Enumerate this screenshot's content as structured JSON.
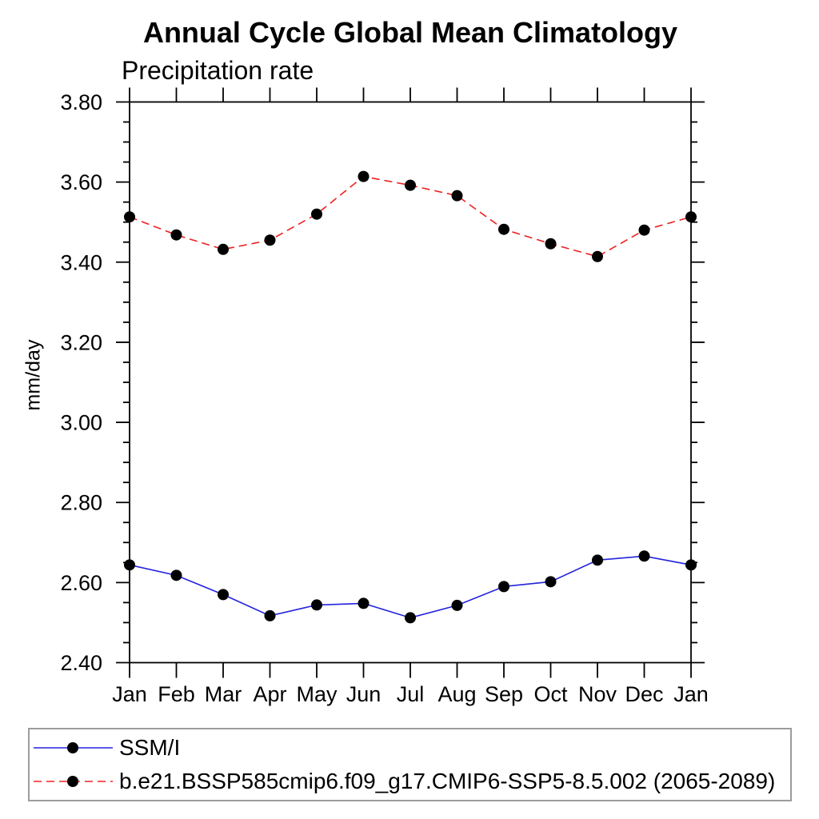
{
  "chart_data": {
    "type": "line",
    "title": "Annual Cycle Global Mean Climatology",
    "subtitle": "Precipitation rate",
    "ylabel": "mm/day",
    "x_categories": [
      "Jan",
      "Feb",
      "Mar",
      "Apr",
      "May",
      "Jun",
      "Jul",
      "Aug",
      "Sep",
      "Oct",
      "Nov",
      "Dec",
      "Jan"
    ],
    "ylim": [
      2.4,
      3.8
    ],
    "ytick_step": 0.2,
    "ytick_minor_step": 0.05,
    "ytick_labels": [
      "2.40",
      "2.60",
      "2.80",
      "3.00",
      "3.20",
      "3.40",
      "3.60",
      "3.80"
    ],
    "grid": false,
    "legend_position": "bottom",
    "frame_color": "#000000",
    "marker_color": "#000000",
    "series": [
      {
        "name": "SSM/I",
        "color": "#2222dd",
        "line_style": "solid",
        "marker": "filled-circle",
        "values": [
          2.644,
          2.618,
          2.57,
          2.517,
          2.544,
          2.548,
          2.512,
          2.543,
          2.59,
          2.602,
          2.656,
          2.666,
          2.644
        ]
      },
      {
        "name": "b.e21.BSSP585cmip6.f09_g17.CMIP6-SSP5-8.5.002 (2065-2089)",
        "color": "#ee2020",
        "line_style": "dashed",
        "marker": "filled-circle",
        "values": [
          3.513,
          3.468,
          3.432,
          3.455,
          3.52,
          3.614,
          3.592,
          3.566,
          3.482,
          3.446,
          3.414,
          3.48,
          3.513
        ]
      }
    ]
  }
}
